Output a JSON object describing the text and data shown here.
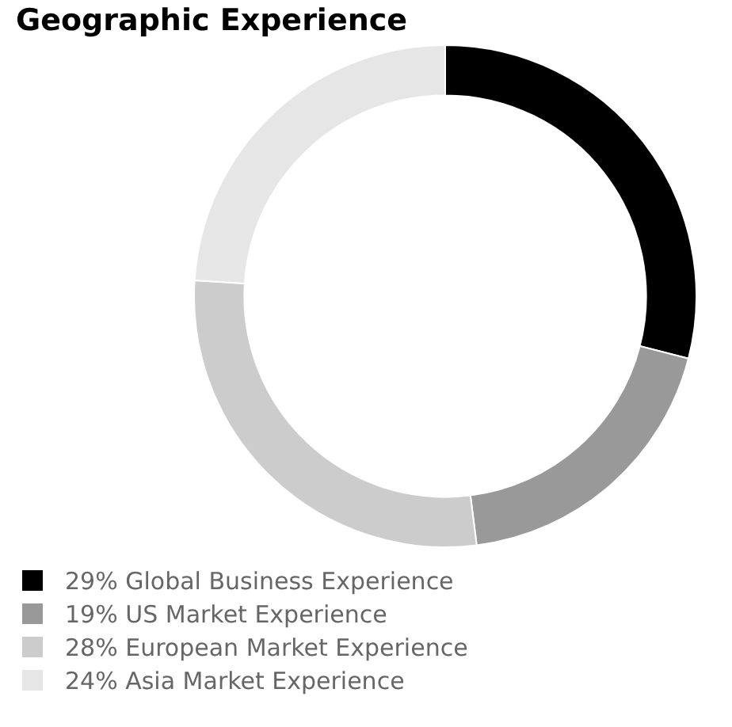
{
  "chart_data": {
    "type": "donut",
    "title": "Geographic Experience",
    "categories": [
      "Global Business Experience",
      "US Market Experience",
      "European Market Experience",
      "Asia Market Experience"
    ],
    "values": [
      29,
      19,
      28,
      24
    ],
    "value_labels": [
      "29%",
      "19%",
      "28%",
      "24%"
    ],
    "colors": [
      "#000000",
      "#999999",
      "#cccccc",
      "#e6e6e6"
    ],
    "legend": "bottom left"
  }
}
